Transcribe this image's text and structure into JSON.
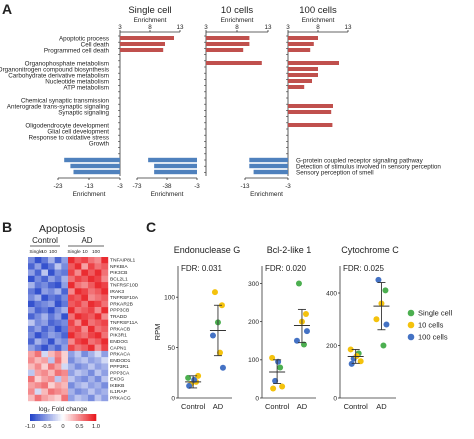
{
  "colors": {
    "up": "#c0504d",
    "down": "#4f81bd",
    "axis": "#333333",
    "single": "#4caf50",
    "ten": "#f4c20d",
    "hundred": "#4472c4",
    "hm_hi": "#e8141a",
    "hm_lo": "#1e3fc8"
  },
  "panel_a": {
    "letter": "A",
    "up_terms": [
      "Apoptotic process",
      "Cell death",
      "Programmed cell death",
      "Organophosphate metabolism",
      "Organonitrogen compound biosynthesis",
      "Carbohydrate derivative metabolism",
      "Nucleotide metabolism",
      "ATP metabolism",
      "Chemical synaptic transmission",
      "Anterograde trans-synaptic signaling",
      "Synaptic signaling",
      "Oligodendrocyte development",
      "Glial cell development",
      "Response to oxidative stress",
      "Growth"
    ],
    "down_terms": [
      "G-protein coupled receptor signaling pathway",
      "Detection of stimulus involved in sensory perception",
      "Sensory perception of smell"
    ],
    "axis_label": "Enrichment",
    "columns": [
      {
        "title": "Single cell",
        "top_ticks": [
          "3",
          "8",
          "13"
        ],
        "top_range": [
          3,
          13
        ],
        "bottom_ticks": [
          "-23",
          "-13",
          "-3"
        ],
        "bottom_range": [
          -23,
          -3
        ],
        "up": [
          12,
          10.5,
          10.2,
          0,
          0,
          0,
          0,
          0,
          0,
          0,
          0,
          0,
          0,
          0,
          0
        ],
        "down": [
          -21,
          -19,
          -18
        ]
      },
      {
        "title": "10 cells",
        "top_ticks": [
          "3",
          "8",
          "13"
        ],
        "top_range": [
          3,
          13
        ],
        "bottom_ticks": [
          "-73",
          "-38",
          "-3"
        ],
        "bottom_range": [
          -73,
          -3
        ],
        "up": [
          0,
          0,
          0,
          4.5,
          4,
          3.6,
          3.6,
          3.6,
          0,
          0,
          0,
          7.8,
          7.3,
          6.3,
          4.8
        ],
        "down": [
          -60,
          -53,
          -53
        ]
      },
      {
        "title": "10 cells",
        "top_ticks": [
          "3",
          "8",
          "13"
        ],
        "top_range": [
          3,
          13
        ],
        "bottom_ticks": [],
        "bottom_range": [
          -73,
          -3
        ],
        "up": [
          10,
          10,
          9,
          12,
          0,
          0,
          0,
          0,
          0,
          0,
          0,
          0,
          0,
          0,
          0
        ],
        "down": [
          0,
          0,
          0
        ]
      },
      {
        "title": "100 cells",
        "top_ticks": [
          "3",
          "8",
          "13"
        ],
        "top_range": [
          3,
          13
        ],
        "bottom_ticks": [
          "-13",
          "-3"
        ],
        "bottom_range": [
          -13,
          -3
        ],
        "up": [
          8,
          7.3,
          6.7,
          11.5,
          8,
          8,
          7,
          5.7,
          0,
          10.5,
          10.2,
          10.4,
          0,
          0,
          0
        ],
        "down": [
          -12,
          -12,
          -11
        ]
      }
    ]
  },
  "panel_b": {
    "letter": "B",
    "title": "Apoptosis",
    "group_labels": [
      "Control",
      "AD"
    ],
    "col_labels": [
      "Single",
      "10",
      "100",
      "Single",
      "10",
      "100"
    ],
    "genes": [
      "TNFAIP8L1",
      "NFKBIA",
      "PIK3CB",
      "BCL2L1",
      "TNFRSF10D",
      "IRAK3",
      "TNFRSF10A",
      "PRKAR2B",
      "PPP3CB",
      "TRADD",
      "TNFRSF11A",
      "PRKACB",
      "PIK3R1",
      "ENDOG",
      "CAPN1",
      "PRKACA",
      "ENDOD1",
      "PPP3R1",
      "PPP3CA",
      "EXOG",
      "IKBKB",
      "IL1RAP",
      "PRKACG"
    ],
    "values": [
      [
        -0.6,
        -0.9,
        -0.7,
        -0.4,
        -0.8,
        -0.5,
        0.9,
        0.7,
        0.8,
        0.6,
        0.5,
        0.9
      ],
      [
        -0.8,
        -0.5,
        -0.9,
        -0.7,
        -0.3,
        -0.6,
        0.7,
        0.9,
        0.4,
        0.8,
        0.6,
        0.7
      ],
      [
        -0.5,
        -0.8,
        -0.3,
        -0.9,
        -0.6,
        -0.7,
        0.8,
        0.5,
        0.9,
        0.7,
        0.9,
        0.6
      ],
      [
        -0.9,
        -0.6,
        -0.8,
        -0.5,
        -0.7,
        -0.4,
        0.6,
        0.8,
        0.7,
        0.9,
        0.8,
        0.5
      ],
      [
        -0.4,
        -0.7,
        -0.6,
        -0.8,
        -0.9,
        -0.5,
        0.9,
        0.6,
        0.5,
        0.7,
        0.9,
        0.8
      ],
      [
        -0.7,
        -0.9,
        -0.5,
        -0.6,
        -0.4,
        -0.8,
        0.5,
        0.9,
        0.8,
        0.6,
        0.7,
        0.9
      ],
      [
        -0.6,
        -0.4,
        -0.9,
        -0.7,
        -0.8,
        -0.6,
        0.8,
        0.7,
        0.9,
        0.5,
        0.6,
        0.7
      ],
      [
        -0.9,
        -0.7,
        -0.6,
        -0.5,
        -0.9,
        -0.7,
        0.7,
        0.8,
        0.6,
        0.9,
        0.8,
        0.6
      ],
      [
        -0.5,
        -0.8,
        -0.7,
        -0.9,
        -0.6,
        -0.4,
        0.9,
        0.6,
        0.7,
        0.8,
        0.5,
        0.9
      ],
      [
        -0.8,
        -0.6,
        -0.4,
        -0.7,
        -0.5,
        -0.9,
        0.6,
        0.9,
        0.8,
        0.7,
        0.9,
        0.5
      ],
      [
        -0.3,
        -0.6,
        -0.5,
        -0.8,
        -0.7,
        -0.6,
        0.8,
        0.5,
        0.9,
        0.6,
        0.7,
        0.8
      ],
      [
        -0.7,
        -0.5,
        -0.8,
        -0.6,
        -0.9,
        -0.7,
        0.7,
        0.8,
        0.5,
        0.9,
        0.6,
        0.7
      ],
      [
        -0.6,
        -0.9,
        -0.7,
        -0.5,
        -0.6,
        -0.8,
        0.9,
        0.7,
        0.6,
        0.8,
        0.9,
        0.6
      ],
      [
        -0.8,
        -0.4,
        -0.6,
        -0.9,
        -0.5,
        -0.6,
        0.5,
        0.8,
        0.9,
        0.6,
        0.7,
        0.9
      ],
      [
        -0.5,
        -0.7,
        -0.9,
        -0.6,
        -0.8,
        -0.5,
        0.8,
        0.6,
        0.7,
        0.9,
        0.5,
        0.8
      ],
      [
        0.4,
        0.6,
        -0.2,
        0.3,
        0.5,
        0.2,
        -0.5,
        -0.3,
        -0.6,
        -0.4,
        -0.2,
        -0.5
      ],
      [
        0.5,
        0.3,
        0.4,
        -0.3,
        0.6,
        0.2,
        -0.6,
        -0.4,
        -0.3,
        -0.5,
        -0.4,
        -0.2
      ],
      [
        0.3,
        0.5,
        0.2,
        0.6,
        0.4,
        -0.2,
        -0.4,
        -0.6,
        -0.5,
        -0.3,
        -0.5,
        -0.4
      ],
      [
        -0.3,
        0.4,
        0.5,
        0.3,
        0.6,
        0.5,
        -0.5,
        -0.3,
        -0.4,
        -0.6,
        -0.3,
        -0.5
      ],
      [
        0.6,
        0.2,
        0.4,
        0.5,
        -0.3,
        0.4,
        -0.3,
        -0.5,
        -0.6,
        -0.4,
        -0.6,
        -0.3
      ],
      [
        0.4,
        0.5,
        0.6,
        0.2,
        0.4,
        0.3,
        -0.6,
        -0.4,
        -0.3,
        -0.5,
        -0.4,
        -0.6
      ],
      [
        0.5,
        -0.2,
        0.3,
        0.6,
        0.5,
        0.4,
        -0.4,
        -0.6,
        -0.5,
        -0.3,
        -0.5,
        -0.4
      ],
      [
        0.3,
        0.6,
        0.4,
        0.3,
        0.2,
        0.6,
        -0.5,
        -0.3,
        -0.4,
        -0.6,
        -0.3,
        -0.5
      ]
    ],
    "scale_label": "log₂ Fold change",
    "scale_ticks": [
      "-1.0",
      "-0.5",
      "0",
      "0.5",
      "1.0"
    ],
    "scale_range": [
      -1,
      1
    ]
  },
  "panel_c": {
    "letter": "C",
    "ylabel": "RPM",
    "legend": [
      "Single cell",
      "10 cells",
      "100 cells"
    ],
    "charts": [
      {
        "title": "Endonuclease G",
        "fdr": "FDR: 0.031",
        "yticks": [
          "0",
          "50",
          "100"
        ],
        "ylim": [
          0,
          125
        ],
        "groups": [
          "Control",
          "AD"
        ],
        "points": [
          {
            "group": 0,
            "y": 20,
            "s": 0
          },
          {
            "group": 0,
            "y": 16,
            "s": 1
          },
          {
            "group": 0,
            "y": 14,
            "s": 1
          },
          {
            "group": 0,
            "y": 22,
            "s": 1
          },
          {
            "group": 0,
            "y": 12,
            "s": 2
          },
          {
            "group": 0,
            "y": 18,
            "s": 2
          },
          {
            "group": 1,
            "y": 105,
            "s": 1
          },
          {
            "group": 1,
            "y": 92,
            "s": 1
          },
          {
            "group": 1,
            "y": 75,
            "s": 0
          },
          {
            "group": 1,
            "y": 62,
            "s": 2
          },
          {
            "group": 1,
            "y": 45,
            "s": 1
          },
          {
            "group": 1,
            "y": 30,
            "s": 2
          }
        ],
        "summary": [
          {
            "mean": 16,
            "lo": 10,
            "hi": 22
          },
          {
            "mean": 67,
            "lo": 42,
            "hi": 92
          }
        ]
      },
      {
        "title": "Bcl-2-like 1",
        "fdr": "FDR: 0.020",
        "yticks": [
          "0",
          "100",
          "200",
          "300"
        ],
        "ylim": [
          0,
          330
        ],
        "groups": [
          "Control",
          "AD"
        ],
        "points": [
          {
            "group": 0,
            "y": 105,
            "s": 1
          },
          {
            "group": 0,
            "y": 80,
            "s": 0
          },
          {
            "group": 0,
            "y": 45,
            "s": 2
          },
          {
            "group": 0,
            "y": 30,
            "s": 1
          },
          {
            "group": 0,
            "y": 25,
            "s": 1
          },
          {
            "group": 0,
            "y": 95,
            "s": 2
          },
          {
            "group": 1,
            "y": 300,
            "s": 0
          },
          {
            "group": 1,
            "y": 220,
            "s": 1
          },
          {
            "group": 1,
            "y": 200,
            "s": 1
          },
          {
            "group": 1,
            "y": 150,
            "s": 2
          },
          {
            "group": 1,
            "y": 140,
            "s": 0
          },
          {
            "group": 1,
            "y": 175,
            "s": 2
          }
        ],
        "summary": [
          {
            "mean": 68,
            "lo": 38,
            "hi": 100
          },
          {
            "mean": 190,
            "lo": 145,
            "hi": 232
          }
        ]
      },
      {
        "title": "Cytochrome C",
        "fdr": "FDR: 0.025",
        "yticks": [
          "0",
          "200",
          "400"
        ],
        "ylim": [
          0,
          480
        ],
        "groups": [
          "Control",
          "AD"
        ],
        "points": [
          {
            "group": 0,
            "y": 185,
            "s": 1
          },
          {
            "group": 0,
            "y": 170,
            "s": 0
          },
          {
            "group": 0,
            "y": 150,
            "s": 2
          },
          {
            "group": 0,
            "y": 140,
            "s": 1
          },
          {
            "group": 0,
            "y": 130,
            "s": 2
          },
          {
            "group": 0,
            "y": 160,
            "s": 1
          },
          {
            "group": 1,
            "y": 450,
            "s": 2
          },
          {
            "group": 1,
            "y": 410,
            "s": 0
          },
          {
            "group": 1,
            "y": 360,
            "s": 1
          },
          {
            "group": 1,
            "y": 300,
            "s": 1
          },
          {
            "group": 1,
            "y": 200,
            "s": 0
          },
          {
            "group": 1,
            "y": 280,
            "s": 2
          }
        ],
        "summary": [
          {
            "mean": 158,
            "lo": 132,
            "hi": 185
          },
          {
            "mean": 350,
            "lo": 260,
            "hi": 440
          }
        ]
      }
    ]
  }
}
